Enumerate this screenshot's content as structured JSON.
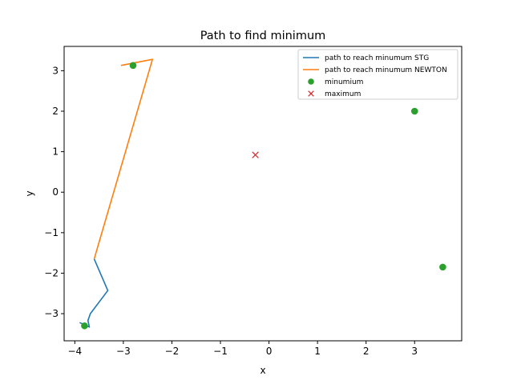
{
  "chart_data": {
    "type": "line",
    "title": "Path to find minimum",
    "xlabel": "x",
    "ylabel": "y",
    "xlim": [
      -4.22,
      3.97
    ],
    "ylim": [
      -3.67,
      3.6
    ],
    "xticks": [
      -4,
      -3,
      -2,
      -1,
      0,
      1,
      2,
      3
    ],
    "xtick_labels": [
      "−4",
      "−3",
      "−2",
      "−1",
      "0",
      "1",
      "2",
      "3"
    ],
    "yticks": [
      -3,
      -2,
      -1,
      0,
      1,
      2,
      3
    ],
    "ytick_labels": [
      "−3",
      "−2",
      "−1",
      "0",
      "1",
      "2",
      "3"
    ],
    "grid": false,
    "legend_position": "top-right",
    "series": [
      {
        "name": "path to reach minumum STG",
        "kind": "line",
        "color": "#1f77b4",
        "points": [
          [
            -3.6,
            -1.65
          ],
          [
            -3.32,
            -2.43
          ],
          [
            -3.68,
            -3.0
          ],
          [
            -3.73,
            -3.17
          ],
          [
            -3.7,
            -3.33
          ],
          [
            -3.9,
            -3.22
          ]
        ]
      },
      {
        "name": "path to reach minumum NEWTON",
        "kind": "line",
        "color": "#ff7f0e",
        "points": [
          [
            -3.6,
            -1.65
          ],
          [
            -2.4,
            3.28
          ],
          [
            -3.05,
            3.13
          ]
        ]
      },
      {
        "name": "minumium",
        "kind": "scatter",
        "marker": "circle",
        "color": "#2ca02c",
        "points": [
          [
            -3.8,
            -3.3
          ],
          [
            -2.8,
            3.13
          ],
          [
            3.0,
            2.0
          ],
          [
            3.58,
            -1.85
          ]
        ]
      },
      {
        "name": "maximum",
        "kind": "scatter",
        "marker": "x",
        "color": "#d62728",
        "points": [
          [
            -0.28,
            0.92
          ]
        ]
      }
    ]
  }
}
